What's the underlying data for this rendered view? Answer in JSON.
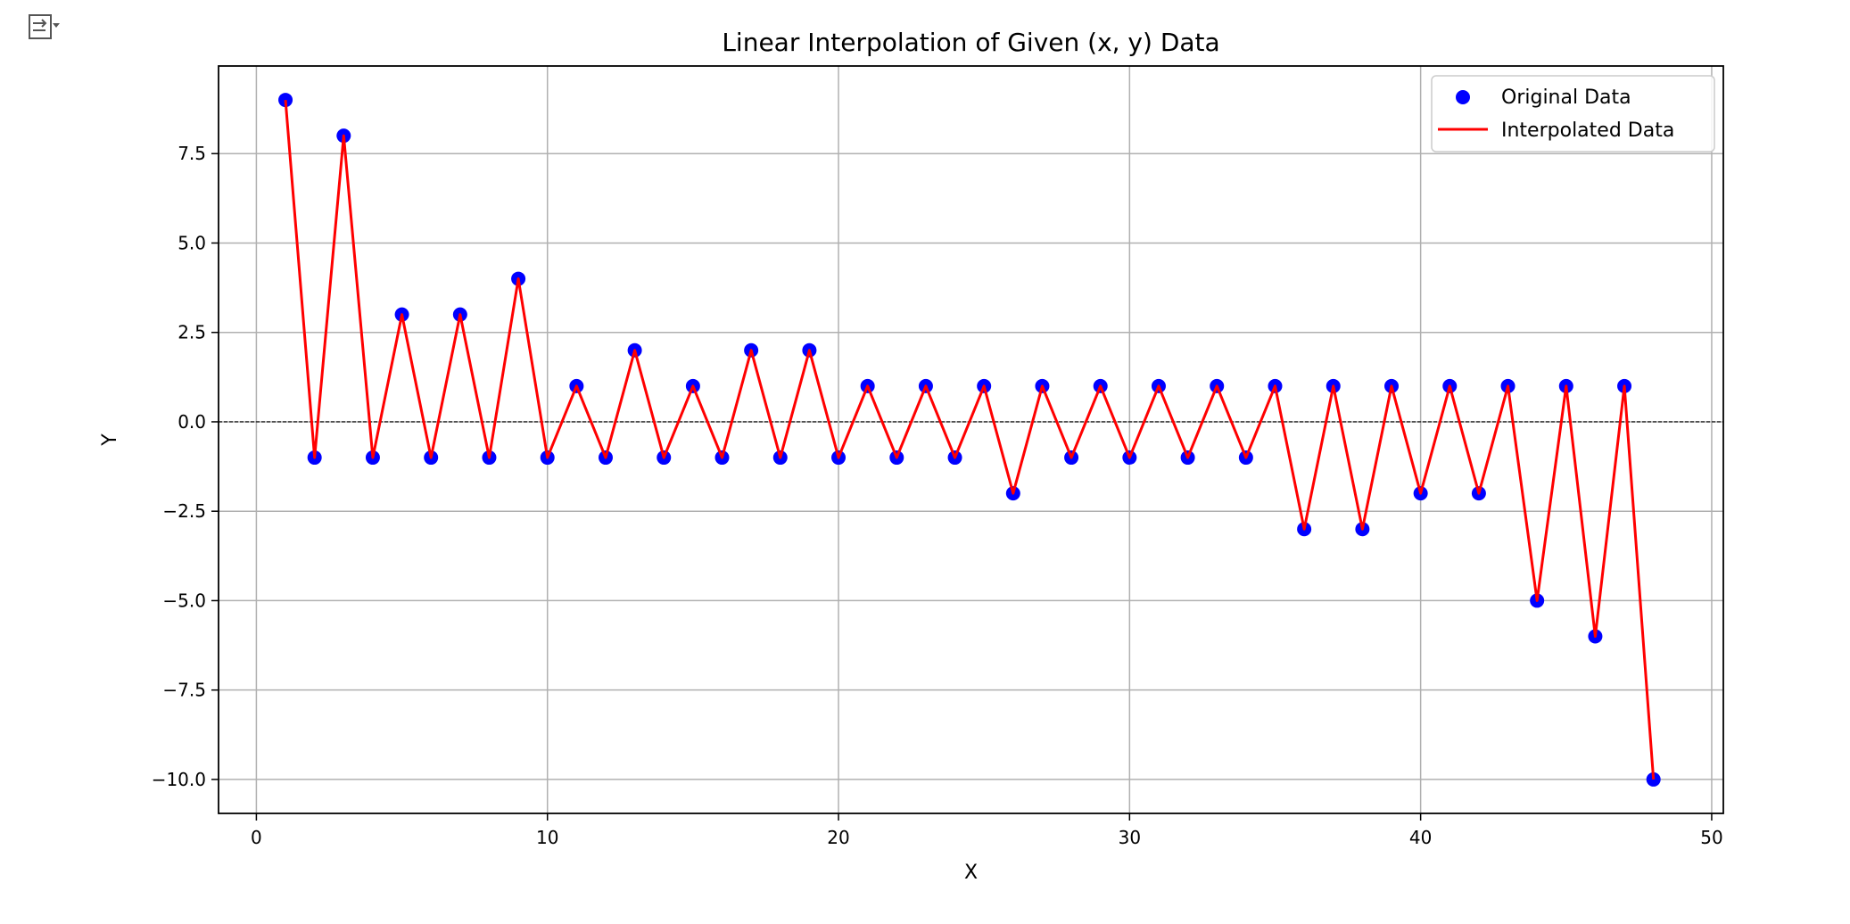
{
  "chart_data": {
    "type": "line",
    "title": "Linear Interpolation of Given (x, y) Data",
    "xlabel": "X",
    "ylabel": "Y",
    "xlim": [
      -1.3,
      50.4
    ],
    "ylim": [
      -10.95,
      9.95
    ],
    "xticks": [
      0,
      10,
      20,
      30,
      40,
      50
    ],
    "xtick_labels": [
      "0",
      "10",
      "20",
      "30",
      "40",
      "50"
    ],
    "yticks": [
      -10,
      -7.5,
      -5,
      -2.5,
      0,
      2.5,
      5,
      7.5
    ],
    "ytick_labels": [
      "−10.0",
      "−7.5",
      "−5.0",
      "−2.5",
      "0.0",
      "2.5",
      "5.0",
      "7.5"
    ],
    "grid": true,
    "zero_line": true,
    "legend_position": "upper right",
    "x": [
      1,
      2,
      3,
      4,
      5,
      6,
      7,
      8,
      9,
      10,
      11,
      12,
      13,
      14,
      15,
      16,
      17,
      18,
      19,
      20,
      21,
      22,
      23,
      24,
      25,
      26,
      27,
      28,
      29,
      30,
      31,
      32,
      33,
      34,
      35,
      36,
      37,
      38,
      39,
      40,
      41,
      42,
      43,
      44,
      45,
      46,
      47,
      48
    ],
    "series": [
      {
        "name": "Original Data",
        "kind": "scatter",
        "color": "#0000ff",
        "values": [
          9,
          -1,
          8,
          -1,
          3,
          -1,
          3,
          -1,
          4,
          -1,
          1,
          -1,
          2,
          -1,
          1,
          -1,
          2,
          -1,
          2,
          -1,
          1,
          -1,
          1,
          -1,
          1,
          -2,
          1,
          -1,
          1,
          -1,
          1,
          -1,
          1,
          -1,
          1,
          -3,
          1,
          -3,
          1,
          -2,
          1,
          -2,
          1,
          -5,
          1,
          -6,
          1,
          -10
        ]
      },
      {
        "name": "Interpolated Data",
        "kind": "line",
        "color": "#ff0000",
        "values": [
          9,
          -1,
          8,
          -1,
          3,
          -1,
          3,
          -1,
          4,
          -1,
          1,
          -1,
          2,
          -1,
          1,
          -1,
          2,
          -1,
          2,
          -1,
          1,
          -1,
          1,
          -1,
          1,
          -2,
          1,
          -1,
          1,
          -1,
          1,
          -1,
          1,
          -1,
          1,
          -3,
          1,
          -3,
          1,
          -2,
          1,
          -2,
          1,
          -5,
          1,
          -6,
          1,
          -10
        ]
      }
    ]
  }
}
